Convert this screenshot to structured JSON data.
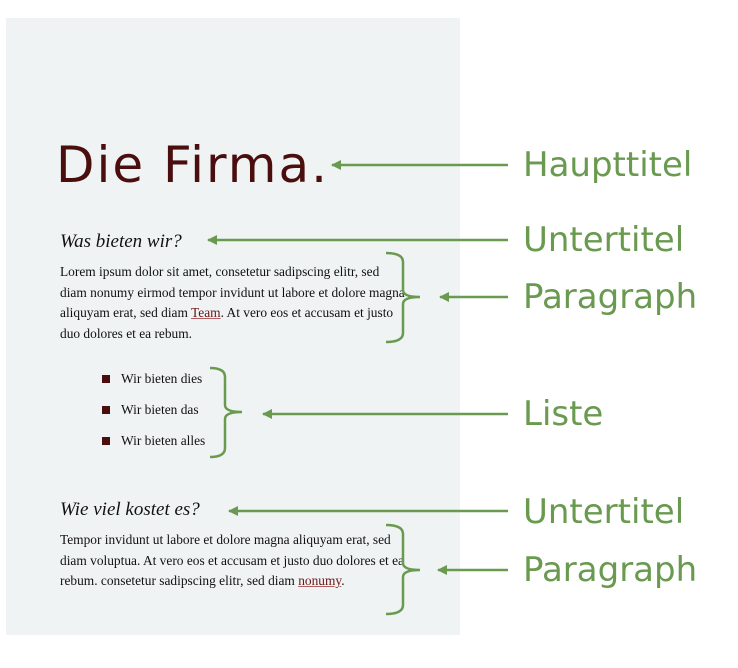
{
  "document": {
    "title": "Die Firma.",
    "section1": {
      "heading": "Was bieten wir?",
      "paragraph_before_link": "Lorem ipsum dolor sit amet, consetetur sadipscing elitr, sed diam nonumy eirmod tempor invidunt ut labore et dolore magna aliquyam erat, sed diam ",
      "link": "Team",
      "paragraph_after_link": ". At vero eos et accusam et justo duo dolores et ea rebum."
    },
    "list": [
      "Wir bieten dies",
      "Wir bieten das",
      "Wir bieten alles"
    ],
    "section2": {
      "heading": "Wie viel kostet es?",
      "paragraph_before_link": "Tempor invidunt ut labore et dolore magna aliquyam erat, sed diam voluptua. At vero eos et accusam et justo duo dolores et ea rebum. consetetur sadipscing elitr, sed diam ",
      "link": "nonumy",
      "paragraph_after_link": "."
    }
  },
  "annotations": {
    "haupttitel": "Haupttitel",
    "untertitel_1": "Untertitel",
    "paragraph_1": "Paragraph",
    "liste": "Liste",
    "untertitel_2": "Untertitel",
    "paragraph_2": "Paragraph"
  },
  "colors": {
    "title": "#4a0e0e",
    "annotation": "#6a9a50",
    "page_background": "#f0f3f4",
    "link": "#6b1515"
  }
}
